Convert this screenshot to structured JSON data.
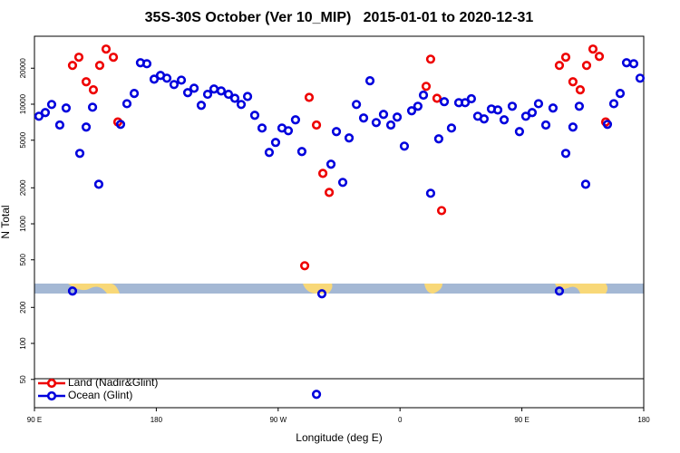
{
  "chart_data": {
    "type": "scatter",
    "title": "35S-30S October (Ver 10_MIP)   2015-01-01 to 2020-12-31",
    "xlabel": "Longitude (deg E)",
    "ylabel": "N Total",
    "xlim": [
      90,
      540
    ],
    "ylim": [
      29,
      37000
    ],
    "yscale": "log",
    "grid": false,
    "legend": "lower left",
    "xticks": [
      {
        "value": 90,
        "label": "90 E"
      },
      {
        "value": 180,
        "label": "180"
      },
      {
        "value": 270,
        "label": "90 W"
      },
      {
        "value": 360,
        "label": "0"
      },
      {
        "value": 450,
        "label": "90 E"
      },
      {
        "value": 540,
        "label": "180"
      }
    ],
    "yticks": [
      50,
      100,
      200,
      500,
      1000,
      2000,
      5000,
      10000,
      20000
    ],
    "series": [
      {
        "name": "Land (Nadir&Glint)",
        "color": "#ee0000",
        "x": [
          118.1,
          122.8,
          128.2,
          133.5,
          138.2,
          142.9,
          148.3,
          151.6,
          292.9,
          289.6,
          298.3,
          303.0,
          307.7,
          379.3,
          382.6,
          387.3,
          390.7,
          477.7,
          482.4,
          487.7,
          493.1,
          497.8,
          502.5,
          507.2,
          511.9
        ],
        "values": [
          21100,
          24700,
          15400,
          13200,
          21100,
          28900,
          24700,
          7100,
          11400,
          446,
          6700,
          2640,
          1830,
          14100,
          23800,
          11200,
          1290,
          21100,
          24700,
          15400,
          13200,
          21100,
          28900,
          25100,
          7100
        ]
      },
      {
        "name": "Ocean (Glint)",
        "color": "#0000dd",
        "x": [
          93.3,
          98.0,
          102.7,
          108.7,
          113.4,
          118.1,
          123.5,
          128.2,
          132.9,
          137.5,
          153.6,
          158.3,
          163.7,
          168.3,
          173.0,
          178.4,
          183.1,
          187.8,
          193.1,
          198.5,
          203.2,
          207.9,
          213.2,
          217.9,
          222.6,
          227.9,
          233.3,
          238.0,
          242.7,
          247.4,
          252.7,
          258.1,
          263.4,
          268.1,
          272.8,
          277.5,
          282.8,
          287.5,
          302.3,
          309.0,
          313.0,
          317.7,
          322.4,
          327.8,
          333.1,
          337.8,
          342.4,
          347.8,
          353.2,
          357.9,
          363.2,
          368.6,
          373.2,
          377.3,
          382.6,
          388.6,
          392.7,
          398.0,
          403.4,
          408.1,
          412.7,
          417.4,
          422.1,
          427.5,
          432.2,
          436.9,
          442.9,
          448.2,
          452.9,
          457.6,
          462.3,
          467.7,
          473.0,
          477.7,
          482.4,
          487.7,
          492.4,
          497.1,
          513.2,
          517.9,
          522.6,
          527.3,
          532.6,
          537.3,
          298.3
        ],
        "values": [
          7930,
          8510,
          9950,
          6700,
          9290,
          274,
          3880,
          6440,
          9440,
          2140,
          6780,
          10100,
          12300,
          22200,
          21800,
          16200,
          17400,
          16500,
          14600,
          15900,
          12500,
          13600,
          9780,
          12100,
          13400,
          12900,
          12100,
          11200,
          9950,
          11600,
          8080,
          6320,
          3950,
          4790,
          6320,
          6000,
          7400,
          4020,
          260,
          3150,
          5900,
          2220,
          5220,
          9950,
          7670,
          15700,
          7020,
          8220,
          6700,
          7800,
          4460,
          8810,
          9610,
          11900,
          1800,
          5130,
          10500,
          6320,
          10300,
          10300,
          11100,
          7930,
          7530,
          9120,
          8950,
          7400,
          9610,
          5900,
          7930,
          8510,
          10100,
          6700,
          9290,
          274,
          3880,
          6440,
          9610,
          2140,
          6780,
          10100,
          12300,
          22200,
          21800,
          16500,
          37.5
        ]
      }
    ]
  }
}
